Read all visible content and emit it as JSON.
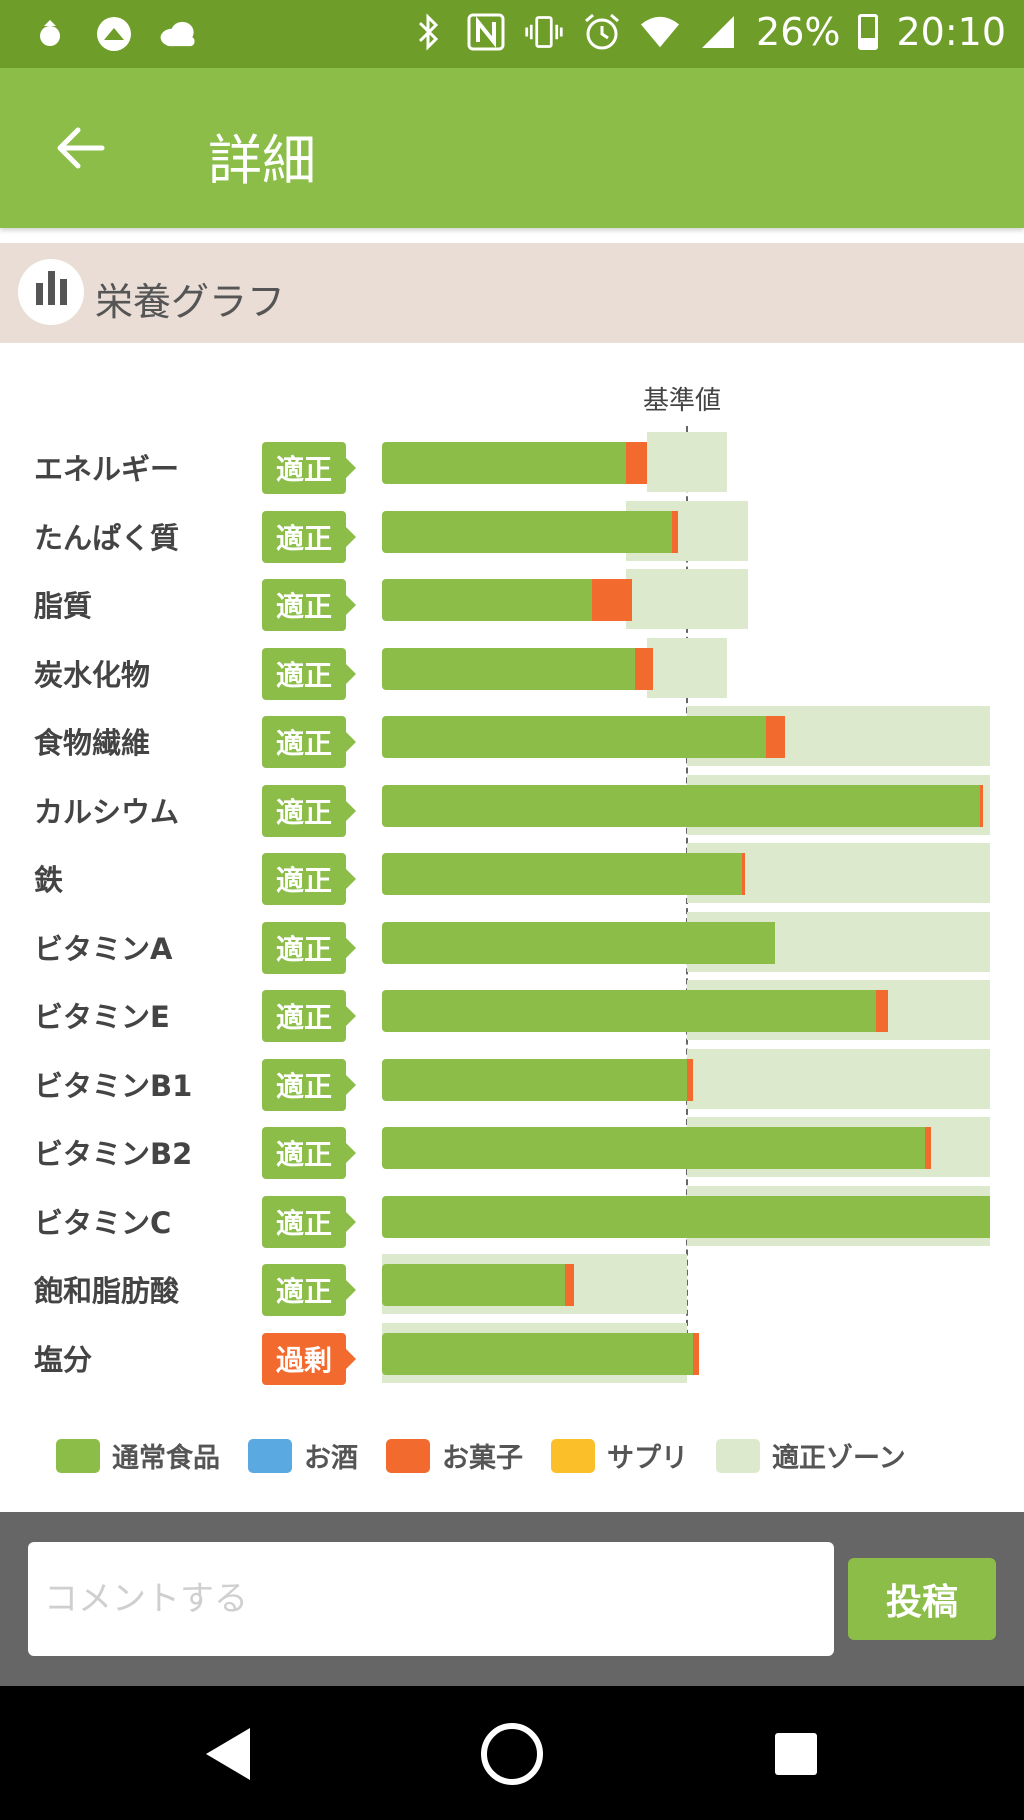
{
  "status_bar": {
    "battery": "26%",
    "time": "20:10",
    "icons": [
      "notification-icon",
      "sync-icon",
      "cloud-icon",
      "bluetooth-icon",
      "nfc-icon",
      "vibrate-icon",
      "alarm-icon",
      "wifi-icon",
      "signal-icon",
      "battery-icon"
    ]
  },
  "app_bar": {
    "title": "詳細"
  },
  "section": {
    "title": "栄養グラフ"
  },
  "chart_data": {
    "type": "bar",
    "orientation": "horizontal",
    "stacked": true,
    "title": "栄養グラフ",
    "reference_label": "基準値",
    "reference_value": 100,
    "units": "percent of reference",
    "categories": [
      "エネルギー",
      "たんぱく質",
      "脂質",
      "炭水化物",
      "食物繊維",
      "カルシウム",
      "鉄",
      "ビタミンA",
      "ビタミンE",
      "ビタミンB1",
      "ビタミンB2",
      "ビタミンC",
      "飽和脂肪酸",
      "塩分"
    ],
    "status": [
      "適正",
      "適正",
      "適正",
      "適正",
      "適正",
      "適正",
      "適正",
      "適正",
      "適正",
      "適正",
      "適正",
      "適正",
      "適正",
      "過剰"
    ],
    "series": [
      {
        "name": "通常食品",
        "color": "#8bbd48",
        "values": [
          80,
          95,
          69,
          83,
          126,
          196,
          118,
          129,
          162,
          100,
          178,
          200,
          60,
          102
        ]
      },
      {
        "name": "お酒",
        "color": "#5aa9e0",
        "values": [
          0,
          0,
          0,
          0,
          0,
          0,
          0,
          0,
          0,
          0,
          0,
          0,
          0,
          0
        ]
      },
      {
        "name": "お菓子",
        "color": "#f26a2e",
        "values": [
          7,
          2,
          13,
          6,
          6,
          1,
          1,
          0,
          4,
          2,
          2,
          0,
          3,
          2
        ]
      },
      {
        "name": "サプリ",
        "color": "#fbbf2a",
        "values": [
          0,
          0,
          0,
          0,
          0,
          0,
          0,
          0,
          0,
          0,
          0,
          0,
          0,
          0
        ]
      }
    ],
    "zones": [
      [
        87,
        113
      ],
      [
        80,
        120
      ],
      [
        80,
        120
      ],
      [
        87,
        113
      ],
      [
        100,
        200
      ],
      [
        100,
        200
      ],
      [
        100,
        200
      ],
      [
        100,
        200
      ],
      [
        100,
        200
      ],
      [
        100,
        200
      ],
      [
        100,
        200
      ],
      [
        100,
        200
      ],
      [
        0,
        100
      ],
      [
        0,
        100
      ]
    ],
    "xlim": [
      0,
      200
    ],
    "legend": [
      {
        "label": "通常食品",
        "color": "#8bbd48"
      },
      {
        "label": "お酒",
        "color": "#5aa9e0"
      },
      {
        "label": "お菓子",
        "color": "#f26a2e"
      },
      {
        "label": "サプリ",
        "color": "#fbbf2a"
      },
      {
        "label": "適正ゾーン",
        "color": "#dde9cc"
      }
    ]
  },
  "comment": {
    "placeholder": "コメントする",
    "post_label": "投稿"
  }
}
